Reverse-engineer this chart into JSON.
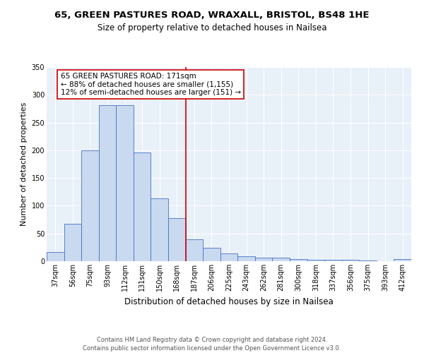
{
  "title1": "65, GREEN PASTURES ROAD, WRAXALL, BRISTOL, BS48 1HE",
  "title2": "Size of property relative to detached houses in Nailsea",
  "xlabel": "Distribution of detached houses by size in Nailsea",
  "ylabel": "Number of detached properties",
  "categories": [
    "37sqm",
    "56sqm",
    "75sqm",
    "93sqm",
    "112sqm",
    "131sqm",
    "150sqm",
    "168sqm",
    "187sqm",
    "206sqm",
    "225sqm",
    "243sqm",
    "262sqm",
    "281sqm",
    "300sqm",
    "318sqm",
    "337sqm",
    "356sqm",
    "375sqm",
    "393sqm",
    "412sqm"
  ],
  "values": [
    17,
    67,
    200,
    281,
    281,
    196,
    113,
    78,
    39,
    24,
    14,
    9,
    6,
    7,
    4,
    3,
    2,
    2,
    1,
    0,
    4
  ],
  "bar_color": "#c9d9f0",
  "bar_edge_color": "#4472c4",
  "bg_color": "#e8f0f8",
  "grid_color": "#ffffff",
  "vline_color": "#cc0000",
  "vline_index": 7,
  "annotation_text": "65 GREEN PASTURES ROAD: 171sqm\n← 88% of detached houses are smaller (1,155)\n12% of semi-detached houses are larger (151) →",
  "ylim": [
    0,
    350
  ],
  "footer": "Contains HM Land Registry data © Crown copyright and database right 2024.\nContains public sector information licensed under the Open Government Licence v3.0.",
  "title1_fontsize": 9.5,
  "title2_fontsize": 8.5,
  "xlabel_fontsize": 8.5,
  "ylabel_fontsize": 8,
  "tick_fontsize": 7,
  "annotation_fontsize": 7.5,
  "footer_fontsize": 6.0
}
